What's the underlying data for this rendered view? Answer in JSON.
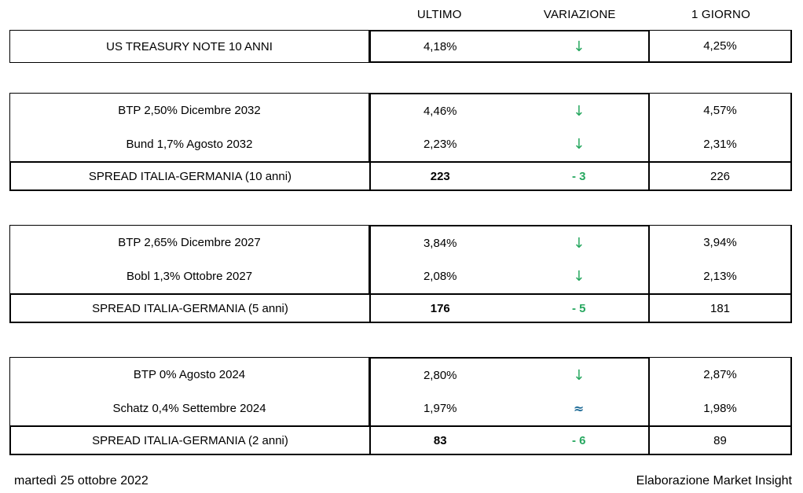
{
  "columns": {
    "ultimo": "ULTIMO",
    "variazione": "VARIAZIONE",
    "giorno": "1 GIORNO"
  },
  "colors": {
    "variation_green": "#26a75f",
    "approx_blue": "#1d6a96",
    "border_black": "#000000"
  },
  "groups": [
    {
      "rows": [
        {
          "label": "US TREASURY NOTE 10 ANNI",
          "ultimo": "4,18%",
          "variazione_symbol": "↓",
          "giorno": "4,25%"
        }
      ]
    },
    {
      "rows": [
        {
          "label": "BTP 2,50% Dicembre 2032",
          "ultimo": "4,46%",
          "variazione_symbol": "↓",
          "giorno": "4,57%"
        },
        {
          "label": "Bund 1,7% Agosto 2032",
          "ultimo": "2,23%",
          "variazione_symbol": "↓",
          "giorno": "2,31%"
        }
      ],
      "spread": {
        "label": "SPREAD ITALIA-GERMANIA (10 anni)",
        "ultimo": "223",
        "variazione": "- 3",
        "giorno": "226"
      }
    },
    {
      "rows": [
        {
          "label": "BTP 2,65% Dicembre 2027",
          "ultimo": "3,84%",
          "variazione_symbol": "↓",
          "giorno": "3,94%"
        },
        {
          "label": "Bobl 1,3% Ottobre 2027",
          "ultimo": "2,08%",
          "variazione_symbol": "↓",
          "giorno": "2,13%"
        }
      ],
      "spread": {
        "label": "SPREAD ITALIA-GERMANIA (5 anni)",
        "ultimo": "176",
        "variazione": "- 5",
        "giorno": "181"
      }
    },
    {
      "rows": [
        {
          "label": "BTP 0% Agosto 2024",
          "ultimo": "2,80%",
          "variazione_symbol": "↓",
          "giorno": "2,87%"
        },
        {
          "label": "Schatz 0,4% Settembre 2024",
          "ultimo": "1,97%",
          "variazione_symbol": "≈",
          "giorno": "1,98%"
        }
      ],
      "spread": {
        "label": "SPREAD ITALIA-GERMANIA (2 anni)",
        "ultimo": "83",
        "variazione": "- 6",
        "giorno": "89"
      }
    }
  ],
  "footer": {
    "date": "martedì 25 ottobre 2022",
    "credit": "Elaborazione Market Insight"
  }
}
